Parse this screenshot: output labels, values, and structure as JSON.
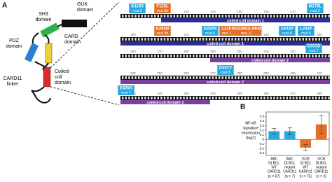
{
  "panel_a": {
    "label": "A",
    "domains": [
      {
        "lines": [
          "GUK",
          "domain"
        ],
        "color": "#111111"
      },
      {
        "lines": [
          "SH3",
          "domain"
        ],
        "color": "#2bb24c"
      },
      {
        "lines": [
          "CARD",
          "domain"
        ],
        "color": "#f2d22e"
      },
      {
        "lines": [
          "PDZ",
          "domain"
        ],
        "color": "#2a7fd0"
      },
      {
        "lines": [
          "Coiled-",
          "coil",
          "domain"
        ],
        "color": "#e02828"
      },
      {
        "lines": [
          "CARD11",
          "linker"
        ],
        "color": "#111111"
      }
    ],
    "rows": [
      {
        "positions": [
          110,
          120,
          130,
          140,
          150,
          160,
          170,
          180
        ],
        "mutations": [
          {
            "label": "G116S",
            "sub": "mut 3",
            "color": "#29a8e0"
          },
          {
            "label": "F123L",
            "sub": "mut 9b",
            "color": "#e0702a"
          },
          {
            "label": "M176L",
            "sub": "mut 2",
            "color": "#29a8e0"
          }
        ],
        "ribbon": {
          "label": "coiled-coil domain 1",
          "color": "#2b2d8f"
        }
      },
      {
        "positions": [
          190,
          200,
          210,
          220,
          230,
          240,
          250,
          260
        ],
        "mutations": [
          {
            "label": "K208M",
            "sub": "mut 9b",
            "color": "#e0702a"
          },
          {
            "label": "D220N",
            "sub": "mut 4",
            "color": "#29a8e0"
          },
          {
            "label": "L225L",
            "sub": "mut 10",
            "color": "#e0702a"
          },
          {
            "label": "M233MGLNKM",
            "sub": "mut 11",
            "color": "#e0702a"
          },
          {
            "label": "S243P",
            "sub": "mut 6",
            "color": "#29a8e0"
          },
          {
            "label": "L244P",
            "sub": "mut 5",
            "color": "#29a8e0"
          }
        ],
        "ribbon": {
          "label": "coiled-coil domain 1",
          "color": "#2b2d8f"
        }
      },
      {
        "positions": [
          260,
          270,
          280,
          290,
          300,
          310,
          320,
          330
        ],
        "mutations": [
          {
            "label": "D331G",
            "sub": "mut 7",
            "color": "#29a8e0"
          }
        ],
        "ribbon": {
          "label": "coiled-coil domain 2",
          "color": "#7b3f9e"
        }
      },
      {
        "positions": [
          340,
          350,
          360,
          370,
          380,
          390,
          400,
          410
        ],
        "mutations": [
          {
            "label": "D357V",
            "sub": "mut 8",
            "color": "#29a8e0"
          }
        ],
        "ribbon": {
          "label": "coiled-coil domain 2",
          "color": "#7b3f9e"
        }
      },
      {
        "positions": [
          410,
          420,
          430,
          440,
          450,
          460,
          470,
          480
        ],
        "mutations": [
          {
            "label": "E425K",
            "sub": "mut 7",
            "color": "#29a8e0"
          }
        ],
        "ribbon": {
          "label": "coiled-coil domain 2",
          "color": "#7b3f9e"
        }
      }
    ]
  },
  "chart_data": {
    "type": "bar",
    "panel_label": "B",
    "y_label": [
      "NF-κB",
      "signature",
      "expression",
      "(log2)"
    ],
    "categories": [
      [
        "ABC",
        "DLBCL",
        "WT",
        "CARD11"
      ],
      [
        "ABC",
        "DLBCL",
        "mutant",
        "CARD11"
      ],
      [
        "GCB",
        "DLBCL",
        "WT",
        "CARD11"
      ],
      [
        "GCB",
        "DLBCL",
        "mutant",
        "CARD11"
      ]
    ],
    "n_labels": [
      "(n = 67)",
      "(n = 7)",
      "(n = 75)",
      "(n = 3)"
    ],
    "values": [
      0.18,
      0.18,
      -0.18,
      0.33
    ],
    "errors": [
      0.06,
      0.08,
      0.07,
      0.2
    ],
    "colors": [
      "#29a8e0",
      "#29a8e0",
      "#e0702a",
      "#e0702a"
    ],
    "ylim": [
      -0.35,
      0.6
    ],
    "yticks": [
      -0.3,
      -0.2,
      -0.1,
      0,
      0.1,
      0.2,
      0.3,
      0.4,
      0.5
    ]
  }
}
